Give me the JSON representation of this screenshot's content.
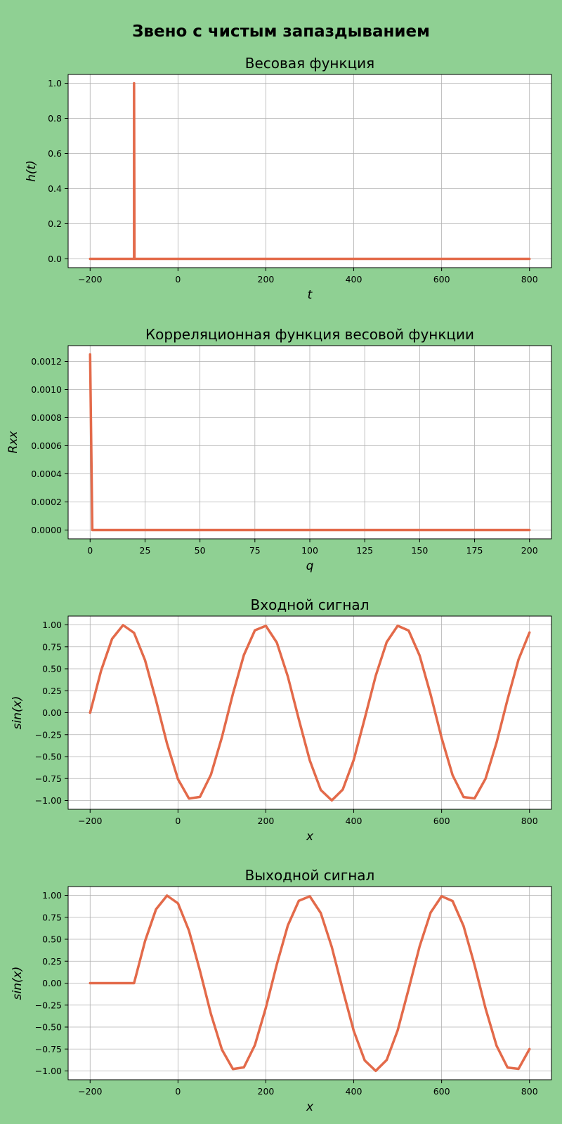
{
  "figure": {
    "suptitle": "Звено с чистым запаздыванием",
    "background": "#8fd093",
    "line_color": "#e36a4a"
  },
  "chart_data": [
    {
      "type": "line",
      "title": "Весовая функция",
      "xlabel": "t",
      "ylabel": "h(t)",
      "xlim": [
        -250,
        850
      ],
      "ylim": [
        -0.05,
        1.05
      ],
      "xticks": [
        -200,
        0,
        200,
        400,
        600,
        800
      ],
      "xtick_labels": [
        "−200",
        "0",
        "200",
        "400",
        "600",
        "800"
      ],
      "yticks": [
        0.0,
        0.2,
        0.4,
        0.6,
        0.8,
        1.0
      ],
      "ytick_labels": [
        "0.0",
        "0.2",
        "0.4",
        "0.6",
        "0.8",
        "1.0"
      ],
      "grid": true,
      "series": [
        {
          "x": [
            -200,
            -101,
            -100,
            -100,
            -99,
            800
          ],
          "y": [
            0,
            0,
            0,
            1,
            0,
            0
          ]
        }
      ]
    },
    {
      "type": "line",
      "title": "Корреляционная функция весовой функции",
      "xlabel": "q",
      "ylabel": "Rxx",
      "xlim": [
        -10,
        210
      ],
      "ylim": [
        -6.25e-05,
        0.0013125
      ],
      "xticks": [
        0,
        25,
        50,
        75,
        100,
        125,
        150,
        175,
        200
      ],
      "xtick_labels": [
        "0",
        "25",
        "50",
        "75",
        "100",
        "125",
        "150",
        "175",
        "200"
      ],
      "yticks": [
        0,
        0.0002,
        0.0004,
        0.0006,
        0.0008,
        0.001,
        0.0012
      ],
      "ytick_labels": [
        "0.0000",
        "0.0002",
        "0.0004",
        "0.0006",
        "0.0008",
        "0.0010",
        "0.0012"
      ],
      "grid": true,
      "series": [
        {
          "x": [
            0,
            1,
            200
          ],
          "y": [
            0.00125,
            0,
            0
          ]
        }
      ]
    },
    {
      "type": "line",
      "title": "Входной сигнал",
      "xlabel": "x",
      "ylabel": "sin(x)",
      "xlim": [
        -250,
        850
      ],
      "ylim": [
        -1.1,
        1.1
      ],
      "xticks": [
        -200,
        0,
        200,
        400,
        600,
        800
      ],
      "xtick_labels": [
        "−200",
        "0",
        "200",
        "400",
        "600",
        "800"
      ],
      "yticks": [
        -1.0,
        -0.75,
        -0.5,
        -0.25,
        0.0,
        0.25,
        0.5,
        0.75,
        1.0
      ],
      "ytick_labels": [
        "−1.00",
        "−0.75",
        "−0.50",
        "−0.25",
        "0.00",
        "0.25",
        "0.50",
        "0.75",
        "1.00"
      ],
      "grid": true,
      "series": [
        {
          "x": [
            -200,
            -175,
            -150,
            -125,
            -100,
            -75,
            -50,
            -25,
            0,
            25,
            50,
            75,
            100,
            125,
            150,
            175,
            200,
            225,
            250,
            275,
            300,
            325,
            350,
            375,
            400,
            425,
            450,
            475,
            500,
            525,
            550,
            575,
            600,
            625,
            650,
            675,
            700,
            725,
            750,
            775,
            800
          ],
          "y": [
            0.0,
            0.479,
            0.841,
            0.997,
            0.909,
            0.598,
            0.141,
            -0.351,
            -0.757,
            -0.978,
            -0.959,
            -0.706,
            -0.279,
            0.215,
            0.657,
            0.938,
            0.989,
            0.798,
            0.412,
            -0.075,
            -0.544,
            -0.88,
            -0.999,
            -0.875,
            -0.537,
            -0.066,
            0.42,
            0.804,
            0.99,
            0.935,
            0.65,
            0.206,
            -0.288,
            -0.712,
            -0.961,
            -0.976,
            -0.751,
            -0.342,
            0.15,
            0.605,
            0.913
          ]
        }
      ]
    },
    {
      "type": "line",
      "title": "Выходной сигнал",
      "xlabel": "x",
      "ylabel": "sin(x)",
      "xlim": [
        -250,
        850
      ],
      "ylim": [
        -1.1,
        1.1
      ],
      "xticks": [
        -200,
        0,
        200,
        400,
        600,
        800
      ],
      "xtick_labels": [
        "−200",
        "0",
        "200",
        "400",
        "600",
        "800"
      ],
      "yticks": [
        -1.0,
        -0.75,
        -0.5,
        -0.25,
        0.0,
        0.25,
        0.5,
        0.75,
        1.0
      ],
      "ytick_labels": [
        "−1.00",
        "−0.75",
        "−0.50",
        "−0.25",
        "0.00",
        "0.25",
        "0.50",
        "0.75",
        "1.00"
      ],
      "grid": true,
      "series": [
        {
          "x": [
            -200,
            -150,
            -100,
            -75,
            -50,
            -25,
            0,
            25,
            50,
            75,
            100,
            125,
            150,
            175,
            200,
            225,
            250,
            275,
            300,
            325,
            350,
            375,
            400,
            425,
            450,
            475,
            500,
            525,
            550,
            575,
            600,
            625,
            650,
            675,
            700,
            725,
            750,
            775,
            800
          ],
          "y": [
            0,
            0,
            0.0,
            0.479,
            0.841,
            0.997,
            0.909,
            0.598,
            0.141,
            -0.351,
            -0.757,
            -0.978,
            -0.959,
            -0.706,
            -0.279,
            0.215,
            0.657,
            0.938,
            0.989,
            0.798,
            0.412,
            -0.075,
            -0.544,
            -0.88,
            -0.999,
            -0.875,
            -0.537,
            -0.066,
            0.42,
            0.804,
            0.99,
            0.935,
            0.65,
            0.206,
            -0.288,
            -0.712,
            -0.961,
            -0.976,
            -0.751
          ]
        }
      ]
    }
  ]
}
